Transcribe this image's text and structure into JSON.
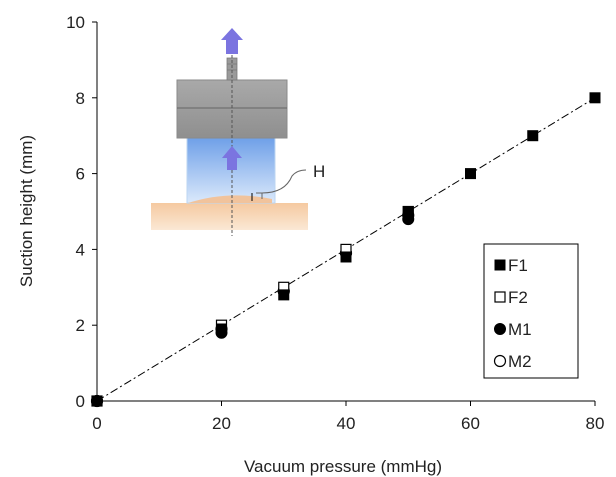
{
  "chart_data": {
    "type": "scatter",
    "xlabel": "Vacuum pressure (mmHg)",
    "ylabel": "Suction height (mm)",
    "xlim": [
      0,
      80
    ],
    "ylim": [
      0,
      10
    ],
    "xticks": [
      "0",
      "20",
      "40",
      "60",
      "80"
    ],
    "yticks": [
      "0",
      "2",
      "4",
      "6",
      "8",
      "10"
    ],
    "grid": false,
    "legend_position": "bottom-right",
    "series": [
      {
        "name": "F1",
        "marker": "filled-square",
        "x": [
          0,
          20,
          30,
          40,
          50,
          60,
          70,
          80
        ],
        "y": [
          0,
          1.9,
          2.8,
          3.8,
          5.0,
          6.0,
          7.0,
          8.0
        ]
      },
      {
        "name": "F2",
        "marker": "open-square",
        "x": [
          0,
          20,
          30,
          40,
          50
        ],
        "y": [
          0,
          2.0,
          3.0,
          4.0,
          5.0
        ]
      },
      {
        "name": "M1",
        "marker": "filled-circle",
        "x": [
          0,
          20,
          30,
          40,
          50
        ],
        "y": [
          0,
          1.8,
          2.9,
          3.9,
          4.8
        ]
      },
      {
        "name": "M2",
        "marker": "open-circle",
        "x": [
          0,
          20,
          30,
          40,
          50
        ],
        "y": [
          0,
          1.9,
          2.9,
          3.9,
          4.9
        ]
      }
    ],
    "fit_line": {
      "style": "dash-dot",
      "x": [
        0,
        80
      ],
      "y": [
        0,
        8
      ]
    },
    "inset": {
      "annotation": "H"
    }
  }
}
